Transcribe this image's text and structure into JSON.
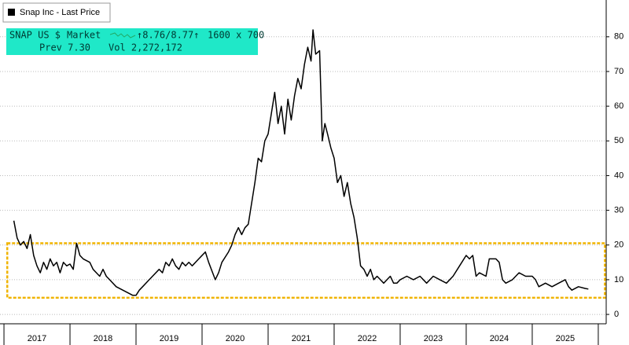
{
  "chart_data": {
    "type": "line",
    "legend_label": "Snap Inc - Last Price",
    "quote_box": {
      "ticker": "SNAP US $",
      "market": "Market",
      "quote": "↑8.76/8.77↑",
      "size": "1600 x 700",
      "prev": "Prev 7.30",
      "vol": "Vol 2,272,172",
      "color": "#1fe8c8"
    },
    "categories": [
      "2017",
      "2018",
      "2019",
      "2020",
      "2021",
      "2022",
      "2023",
      "2024",
      "2025"
    ],
    "xticks": [
      2017,
      2018,
      2019,
      2020,
      2021,
      2022,
      2023,
      2024,
      2025,
      2026
    ],
    "xlim": [
      2016.94,
      2026.12
    ],
    "ylim": [
      -2.7,
      90.6
    ],
    "yticks": [
      0,
      10,
      20,
      30,
      40,
      50,
      60,
      70,
      80
    ],
    "grid": true,
    "highlight_band": {
      "x": [
        2017.05,
        2026.1
      ],
      "y": [
        4.8,
        20.5
      ],
      "color": "#f0b400"
    },
    "x": [
      2017.15,
      2017.2,
      2017.25,
      2017.3,
      2017.35,
      2017.4,
      2017.45,
      2017.5,
      2017.55,
      2017.6,
      2017.65,
      2017.7,
      2017.75,
      2017.8,
      2017.85,
      2017.9,
      2017.95,
      2018.0,
      2018.05,
      2018.1,
      2018.15,
      2018.2,
      2018.3,
      2018.35,
      2018.4,
      2018.45,
      2018.5,
      2018.55,
      2018.6,
      2018.7,
      2018.8,
      2018.9,
      2018.95,
      2019.0,
      2019.05,
      2019.1,
      2019.2,
      2019.25,
      2019.35,
      2019.4,
      2019.45,
      2019.5,
      2019.55,
      2019.6,
      2019.65,
      2019.7,
      2019.75,
      2019.8,
      2019.85,
      2019.95,
      2020.05,
      2020.1,
      2020.2,
      2020.25,
      2020.3,
      2020.4,
      2020.45,
      2020.5,
      2020.55,
      2020.6,
      2020.65,
      2020.7,
      2020.75,
      2020.8,
      2020.85,
      2020.9,
      2020.95,
      2021.0,
      2021.05,
      2021.1,
      2021.15,
      2021.2,
      2021.25,
      2021.3,
      2021.35,
      2021.4,
      2021.45,
      2021.5,
      2021.55,
      2021.6,
      2021.65,
      2021.68,
      2021.72,
      2021.78,
      2021.82,
      2021.86,
      2021.9,
      2021.95,
      2022.0,
      2022.05,
      2022.1,
      2022.15,
      2022.2,
      2022.25,
      2022.3,
      2022.35,
      2022.4,
      2022.45,
      2022.5,
      2022.55,
      2022.6,
      2022.65,
      2022.7,
      2022.75,
      2022.8,
      2022.85,
      2022.9,
      2022.95,
      2023.0,
      2023.1,
      2023.2,
      2023.3,
      2023.4,
      2023.5,
      2023.6,
      2023.7,
      2023.8,
      2023.9,
      2024.0,
      2024.05,
      2024.1,
      2024.15,
      2024.2,
      2024.3,
      2024.35,
      2024.45,
      2024.5,
      2024.55,
      2024.6,
      2024.7,
      2024.8,
      2024.9,
      2025.0,
      2025.05,
      2025.1,
      2025.2,
      2025.3,
      2025.4,
      2025.5,
      2025.55,
      2025.6,
      2025.7,
      2025.8,
      2025.85
    ],
    "series": [
      {
        "name": "Snap Inc - Last Price",
        "color": "#000000",
        "values": [
          27,
          22,
          20,
          21,
          19,
          23,
          17,
          14,
          12,
          15,
          13,
          16,
          14,
          15,
          12,
          15,
          14,
          14.5,
          13,
          20.5,
          17,
          16,
          15,
          13,
          12,
          11,
          13,
          11,
          10,
          8,
          7,
          6,
          5.5,
          5.5,
          7,
          8,
          10,
          11,
          13,
          12,
          15,
          14,
          16,
          14,
          13,
          15,
          14,
          15,
          14,
          16,
          18,
          15,
          10,
          12,
          15,
          18,
          20,
          23,
          25,
          23,
          25,
          26,
          32,
          38,
          45,
          44,
          50,
          52,
          58,
          64,
          55,
          60,
          52,
          62,
          56,
          63,
          68,
          65,
          72,
          77,
          73,
          82,
          75,
          76,
          50,
          55,
          52,
          48,
          45,
          38,
          40,
          34,
          38,
          32,
          28,
          22,
          14,
          13,
          11,
          13,
          10,
          11,
          10,
          9,
          10,
          11,
          9,
          9,
          10,
          11,
          10,
          11,
          9,
          11,
          10,
          9,
          11,
          14,
          17,
          16,
          17,
          11,
          12,
          11,
          16,
          16,
          15,
          10,
          9,
          10,
          12,
          11,
          11,
          10,
          8,
          9,
          8,
          9,
          10,
          8,
          7,
          8,
          7.5,
          7.3
        ]
      }
    ]
  }
}
